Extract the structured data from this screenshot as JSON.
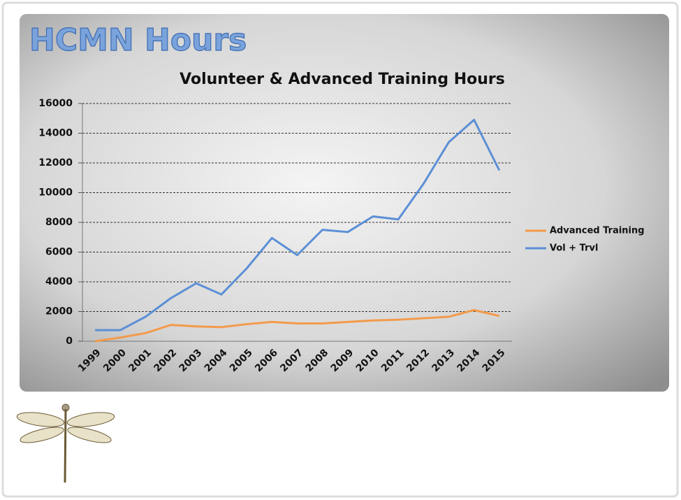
{
  "slide": {
    "title": "HCMN Hours"
  },
  "chart_data": {
    "type": "line",
    "title": "Volunteer & Advanced Training Hours",
    "categories": [
      "1999",
      "2000",
      "2001",
      "2002",
      "2003",
      "2004",
      "2005",
      "2006",
      "2007",
      "2008",
      "2009",
      "2010",
      "2011",
      "2012",
      "2013",
      "2014",
      "2015"
    ],
    "series": [
      {
        "name": "Advanced Training",
        "color": "#f39a4a",
        "values": [
          0,
          250,
          550,
          1100,
          1000,
          950,
          1150,
          1300,
          1200,
          1200,
          1300,
          1400,
          1450,
          1550,
          1650,
          2100,
          1700
        ]
      },
      {
        "name": "Vol + Trvl",
        "color": "#5b8fd6",
        "values": [
          750,
          750,
          1650,
          2900,
          3900,
          3150,
          4900,
          6950,
          5800,
          7500,
          7350,
          8400,
          8200,
          10600,
          13400,
          14900,
          11500
        ]
      }
    ],
    "ylim": [
      0,
      16000
    ],
    "yticks": [
      0,
      2000,
      4000,
      6000,
      8000,
      10000,
      12000,
      14000,
      16000
    ],
    "grid": true,
    "legend": "right"
  }
}
